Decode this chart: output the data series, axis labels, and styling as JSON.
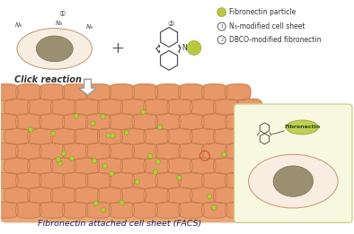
{
  "title": "Fibronectin attached cell sheet (FACS)",
  "legend_items": [
    "Fibronectin particle",
    "N₃-modified cell sheet",
    "DBCO-modified fibronectin"
  ],
  "click_reaction_text": "Click reaction",
  "cell_color": "#f7ede0",
  "cell_outline": "#c8a080",
  "nucleus_color": "#9a9070",
  "cell_sheet_base": "#e8a878",
  "cell_color_sheet": "#e89868",
  "cell_edge_sheet": "#c07848",
  "fibronectin_color": "#b8c840",
  "fibronectin_outline": "#8a9820",
  "background": "#ffffff",
  "inset_bg": "#f8f8e0",
  "inset_edge": "#d0d090",
  "title_color": "#222266",
  "dbco_color": "#555555",
  "legend_circle_color": "#444444"
}
